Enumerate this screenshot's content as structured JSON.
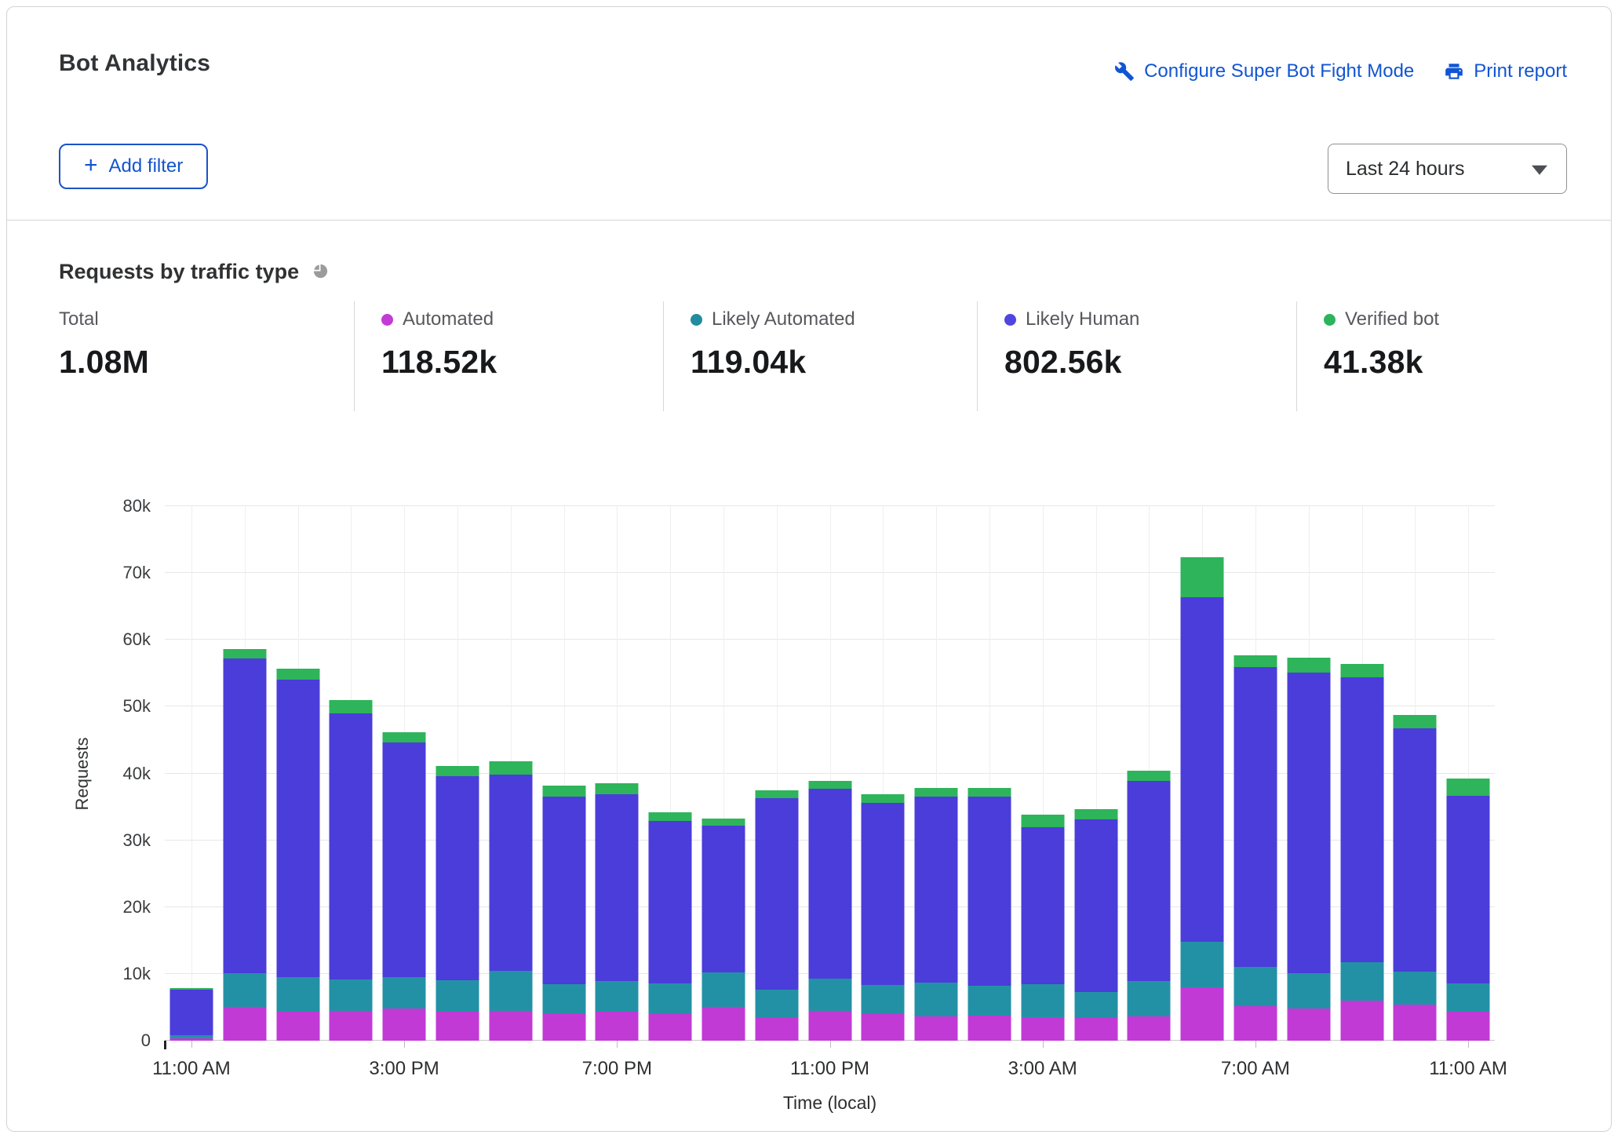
{
  "header": {
    "title": "Bot Analytics",
    "configure_link": "Configure Super Bot Fight Mode",
    "print_link": "Print report",
    "plus": "+",
    "add_filter_label": "Add filter",
    "time_range_value": "Last 24 hours"
  },
  "section": {
    "title": "Requests by traffic type"
  },
  "stats": [
    {
      "label": "Total",
      "value": "1.08M",
      "color": null
    },
    {
      "label": "Automated",
      "value": "118.52k",
      "color": "#c43ad6"
    },
    {
      "label": "Likely Automated",
      "value": "119.04k",
      "color": "#218ba0"
    },
    {
      "label": "Likely Human",
      "value": "802.56k",
      "color": "#5145e0"
    },
    {
      "label": "Verified bot",
      "value": "41.38k",
      "color": "#2bb45c"
    }
  ],
  "colors": {
    "link_blue": "#1155d4",
    "automated": "#c13ad6",
    "likely_automated": "#2391a5",
    "likely_human": "#4a3dd9",
    "verified_bot": "#2eb45a"
  },
  "chart_data": {
    "type": "bar",
    "stacked": true,
    "title": "Requests by traffic type",
    "ylabel": "Requests",
    "xlabel": "Time (local)",
    "ylim_k": [
      0,
      80
    ],
    "ytick_labels": [
      "0",
      "10k",
      "20k",
      "30k",
      "40k",
      "50k",
      "60k",
      "70k",
      "80k"
    ],
    "xtick_positions": [
      0,
      4,
      8,
      12,
      16,
      20,
      24
    ],
    "xtick_labels": [
      "11:00 AM",
      "3:00 PM",
      "7:00 PM",
      "11:00 PM",
      "3:00 AM",
      "7:00 AM",
      "11:00 AM"
    ],
    "legend_position": "top",
    "grid": true,
    "series_order": [
      "Automated",
      "Likely Automated",
      "Likely Human",
      "Verified bot"
    ],
    "series_colors": [
      "#c13ad6",
      "#2391a5",
      "#4a3dd9",
      "#2eb45a"
    ],
    "bars_k_units": "thousands of requests per hourly bucket, segments ordered [Automated, Likely Automated, Likely Human, Verified bot]",
    "bars_k": [
      [
        0.3,
        0.5,
        6.8,
        0.3
      ],
      [
        5.0,
        5.1,
        47.1,
        1.4
      ],
      [
        4.4,
        5.1,
        44.5,
        1.7
      ],
      [
        4.5,
        4.7,
        39.8,
        2.0
      ],
      [
        4.8,
        4.7,
        35.2,
        1.5
      ],
      [
        4.4,
        4.7,
        30.5,
        1.5
      ],
      [
        4.5,
        6.0,
        29.3,
        2.0
      ],
      [
        4.1,
        4.4,
        28.0,
        1.7
      ],
      [
        4.3,
        4.6,
        28.0,
        1.6
      ],
      [
        4.0,
        4.6,
        24.3,
        1.3
      ],
      [
        5.1,
        5.1,
        22.0,
        1.1
      ],
      [
        3.4,
        4.2,
        28.7,
        1.2
      ],
      [
        4.5,
        4.8,
        28.4,
        1.2
      ],
      [
        4.0,
        4.4,
        27.2,
        1.3
      ],
      [
        3.6,
        5.1,
        27.8,
        1.3
      ],
      [
        3.8,
        4.4,
        28.3,
        1.3
      ],
      [
        3.5,
        5.0,
        23.5,
        1.8
      ],
      [
        3.4,
        3.9,
        25.8,
        1.5
      ],
      [
        3.6,
        5.3,
        30.0,
        1.5
      ],
      [
        8.0,
        6.8,
        51.6,
        6.0
      ],
      [
        5.2,
        5.8,
        44.9,
        1.8
      ],
      [
        4.8,
        5.3,
        45.0,
        2.2
      ],
      [
        6.0,
        5.8,
        42.6,
        2.0
      ],
      [
        5.4,
        4.9,
        36.4,
        2.1
      ],
      [
        4.4,
        4.2,
        28.0,
        2.6
      ]
    ]
  }
}
